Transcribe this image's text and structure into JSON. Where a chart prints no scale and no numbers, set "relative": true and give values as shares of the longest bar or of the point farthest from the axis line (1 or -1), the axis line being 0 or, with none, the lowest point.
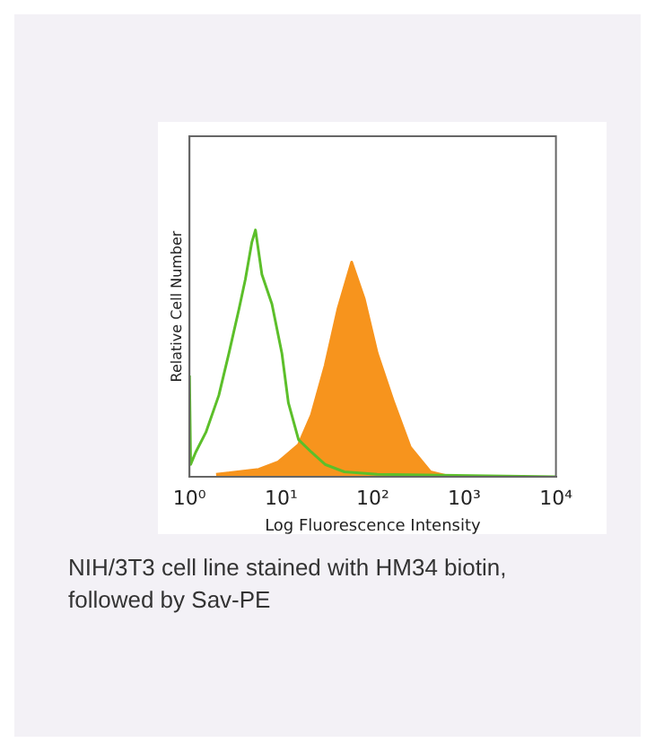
{
  "chart_data": {
    "type": "line",
    "xlabel": "Log Fluorescence Intensity",
    "ylabel": "Relative Cell Number",
    "relative": true,
    "log": "x",
    "grid": false,
    "legend": false,
    "xlim": [
      1,
      10000
    ],
    "xticks": [
      {
        "value": 1,
        "label": "10⁰"
      },
      {
        "value": 10,
        "label": "10¹"
      },
      {
        "value": 100,
        "label": "10²"
      },
      {
        "value": 1000,
        "label": "10³"
      },
      {
        "value": 10000,
        "label": "10⁴"
      }
    ],
    "series": [
      {
        "type": "area",
        "color": "#f7941d",
        "x": [
          1.95,
          5.7,
          9.3,
          15.5,
          21.4,
          30.2,
          41.7,
          58.9,
          81,
          112,
          170,
          257,
          427,
          708
        ],
        "values": [
          0.01,
          0.03,
          0.06,
          0.13,
          0.25,
          0.45,
          0.68,
          0.87,
          0.72,
          0.5,
          0.3,
          0.12,
          0.02,
          0
        ]
      },
      {
        "type": "line",
        "color": "#5cbf2a",
        "x": [
          1,
          1.03,
          1.17,
          1.51,
          2.09,
          2.69,
          3.47,
          4.07,
          4.79,
          5.25,
          6.17,
          7.94,
          10.2,
          12,
          15.5,
          21.4,
          30.2,
          49,
          112,
          10000
        ],
        "values": [
          0.41,
          0.05,
          0.1,
          0.18,
          0.33,
          0.5,
          0.68,
          0.8,
          0.95,
          1,
          0.82,
          0.7,
          0.5,
          0.3,
          0.15,
          0.1,
          0.05,
          0.02,
          0.01,
          0
        ]
      }
    ],
    "annotations": [
      "NIH/3T3 cell line stained with HM34 biotin, followed by Sav-PE"
    ]
  }
}
